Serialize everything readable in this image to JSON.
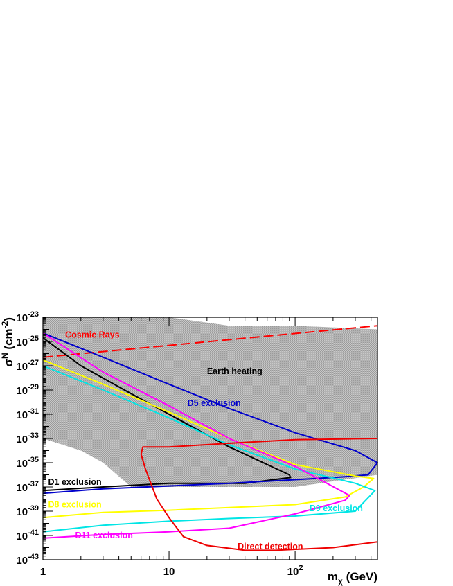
{
  "chart_data": {
    "type": "line",
    "xlabel": "m_χ (GeV)",
    "ylabel": "σ^N (cm^-2)",
    "x_scale": "log",
    "y_scale": "log",
    "xlim": [
      1,
      450
    ],
    "ylim": [
      1e-43,
      1e-23
    ],
    "x_ticks": [
      {
        "value": 1,
        "label": "1"
      },
      {
        "value": 10,
        "label": "10"
      },
      {
        "value": 100,
        "label": "10",
        "exp": "2"
      }
    ],
    "y_ticks": [
      {
        "value": 1e-23,
        "label": "10",
        "exp": "-23"
      },
      {
        "value": 1e-25,
        "label": "10",
        "exp": "-25"
      },
      {
        "value": 1e-27,
        "label": "10",
        "exp": "-27"
      },
      {
        "value": 1e-29,
        "label": "10",
        "exp": "-29"
      },
      {
        "value": 1e-31,
        "label": "10",
        "exp": "-31"
      },
      {
        "value": 1e-33,
        "label": "10",
        "exp": "-33"
      },
      {
        "value": 1e-35,
        "label": "10",
        "exp": "-35"
      },
      {
        "value": 1e-37,
        "label": "10",
        "exp": "-37"
      },
      {
        "value": 1e-39,
        "label": "10",
        "exp": "-39"
      },
      {
        "value": 1e-41,
        "label": "10",
        "exp": "-41"
      },
      {
        "value": 1e-43,
        "label": "10",
        "exp": "-43"
      }
    ],
    "regions": [
      {
        "name": "Earth heating",
        "color": "#b8b8b8",
        "label_at": [
          20,
          2e-28
        ],
        "label_color": "#000000",
        "points": [
          [
            1,
            1e-23
          ],
          [
            10,
            1e-23
          ],
          [
            30,
            2e-24
          ],
          [
            100,
            2e-24
          ],
          [
            450,
            1e-24
          ],
          [
            450,
            1e-36
          ],
          [
            100,
            1e-37
          ],
          [
            30,
            1e-37
          ],
          [
            10,
            1e-37
          ],
          [
            5,
            1e-37
          ],
          [
            3,
            1e-35
          ],
          [
            2,
            1e-34
          ],
          [
            1,
            1e-33
          ]
        ]
      }
    ],
    "series": [
      {
        "name": "Cosmic Rays",
        "color": "#ff0000",
        "dash": "14,6",
        "width": 2,
        "label_at": [
          1.5,
          2e-25
        ],
        "points": [
          [
            1,
            5e-27
          ],
          [
            450,
            2e-24
          ]
        ]
      },
      {
        "name": "D1 exclusion",
        "color": "#000000",
        "width": 2,
        "label_at": [
          1.1,
          1.5e-37
        ],
        "points": [
          [
            1,
            2e-25
          ],
          [
            2,
            1e-27
          ],
          [
            5,
            5e-30
          ],
          [
            10,
            1e-31
          ],
          [
            30,
            2e-34
          ],
          [
            90,
            1e-36
          ],
          [
            92,
            6e-37
          ],
          [
            40,
            2e-37
          ],
          [
            10,
            2e-37
          ],
          [
            3,
            1e-37
          ],
          [
            1,
            5e-38
          ]
        ]
      },
      {
        "name": "D5 exclusion",
        "color": "#0000cc",
        "width": 2,
        "label_at": [
          14,
          5e-31
        ],
        "points": [
          [
            1,
            5e-25
          ],
          [
            3,
            5e-27
          ],
          [
            10,
            3e-29
          ],
          [
            30,
            3e-31
          ],
          [
            100,
            3e-33
          ],
          [
            300,
            1e-34
          ],
          [
            450,
            1e-35
          ],
          [
            380,
            1e-36
          ],
          [
            250,
            7e-37
          ],
          [
            100,
            4e-37
          ],
          [
            30,
            2e-37
          ],
          [
            10,
            1.2e-37
          ],
          [
            3,
            7e-38
          ],
          [
            1,
            3e-38
          ]
        ]
      },
      {
        "name": "D8 exclusion",
        "color": "#ffff00",
        "width": 2,
        "label_at": [
          1.1,
          2e-39
        ],
        "points": [
          [
            1,
            3e-27
          ],
          [
            3,
            3e-29
          ],
          [
            10,
            1.5e-31
          ],
          [
            30,
            1e-33
          ],
          [
            100,
            7e-36
          ],
          [
            300,
            8e-37
          ],
          [
            420,
            5e-37
          ],
          [
            350,
            1e-37
          ],
          [
            250,
            1.5e-38
          ],
          [
            100,
            3.5e-39
          ],
          [
            30,
            2e-39
          ],
          [
            10,
            1.2e-39
          ],
          [
            3,
            8e-40
          ],
          [
            1,
            3e-40
          ]
        ]
      },
      {
        "name": "D9 exclusion",
        "color": "#00e5e5",
        "width": 2,
        "label_at": [
          130,
          1e-39
        ],
        "points": [
          [
            1,
            1e-27
          ],
          [
            3,
            1e-29
          ],
          [
            10,
            5e-32
          ],
          [
            30,
            3e-34
          ],
          [
            100,
            3e-36
          ],
          [
            300,
            2e-37
          ],
          [
            430,
            5e-38
          ],
          [
            300,
            1e-39
          ],
          [
            100,
            4e-40
          ],
          [
            30,
            2.5e-40
          ],
          [
            10,
            1.5e-40
          ],
          [
            3,
            7e-41
          ],
          [
            1,
            2e-41
          ]
        ]
      },
      {
        "name": "D11 exclusion",
        "color": "#ff00ff",
        "width": 2,
        "label_at": [
          1.8,
          6e-42
        ],
        "points": [
          [
            1,
            5e-25
          ],
          [
            3,
            3e-28
          ],
          [
            10,
            5e-31
          ],
          [
            30,
            1e-33
          ],
          [
            100,
            5e-36
          ],
          [
            270,
            2e-38
          ],
          [
            250,
            8e-39
          ],
          [
            100,
            6e-40
          ],
          [
            30,
            4e-41
          ],
          [
            10,
            2e-41
          ],
          [
            3,
            1.2e-41
          ],
          [
            1,
            6e-42
          ]
        ]
      },
      {
        "name": "Direct detection",
        "color": "#ee0000",
        "width": 2,
        "label_at": [
          35,
          7e-43
        ],
        "points": [
          [
            450,
            1e-33
          ],
          [
            100,
            8e-34
          ],
          [
            30,
            4e-34
          ],
          [
            10,
            2e-34
          ],
          [
            6.2,
            2e-34
          ],
          [
            6.0,
            5e-35
          ],
          [
            6.5,
            3e-36
          ],
          [
            8,
            1e-38
          ],
          [
            10,
            3e-40
          ],
          [
            13,
            8e-42
          ],
          [
            20,
            1.5e-42
          ],
          [
            40,
            6e-43
          ],
          [
            70,
            6e-43
          ],
          [
            200,
            1e-42
          ],
          [
            450,
            3e-42
          ]
        ]
      }
    ],
    "grid": false,
    "legend": "none"
  }
}
